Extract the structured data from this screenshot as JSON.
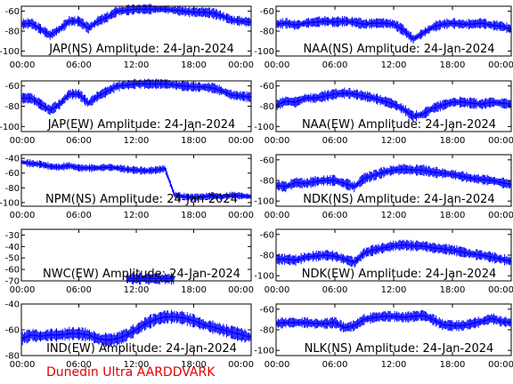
{
  "chart_data": [
    {
      "type": "line",
      "title": "JAP(NS) Amplitude: 24-Jan-2024",
      "ylim": [
        -105,
        -55
      ],
      "yticks": [
        -100,
        -80,
        -60
      ],
      "x_ticks": [
        "00:00",
        "06:00",
        "12:00",
        "18:00",
        "00:00"
      ],
      "series_color": "#0000ff",
      "x": [
        0,
        1,
        2,
        3,
        4,
        5,
        6,
        7,
        8,
        9,
        10,
        11,
        12,
        13,
        14,
        15,
        16,
        17,
        18,
        19,
        20,
        21,
        22,
        23,
        24
      ],
      "values": [
        -73,
        -72,
        -78,
        -84,
        -78,
        -70,
        -70,
        -77,
        -70,
        -66,
        -60,
        -59,
        -58,
        -58,
        -58,
        -58,
        -59,
        -60,
        -61,
        -61,
        -62,
        -65,
        -69,
        -70,
        -71
      ]
    },
    {
      "type": "line",
      "title": "NAA(NS) Amplitude: 24-Jan-2024",
      "ylim": [
        -105,
        -55
      ],
      "yticks": [
        -100,
        -80,
        -60
      ],
      "x_ticks": [
        "00:00",
        "06:00",
        "12:00",
        "18:00",
        "00:00"
      ],
      "series_color": "#0000ff",
      "x": [
        0,
        1,
        2,
        3,
        4,
        5,
        6,
        7,
        8,
        9,
        10,
        11,
        12,
        13,
        14,
        15,
        16,
        17,
        18,
        19,
        20,
        21,
        22,
        23,
        24
      ],
      "values": [
        -73,
        -72,
        -74,
        -72,
        -71,
        -70,
        -71,
        -70,
        -71,
        -73,
        -72,
        -72,
        -73,
        -79,
        -88,
        -82,
        -76,
        -73,
        -72,
        -73,
        -73,
        -72,
        -74,
        -75,
        -78
      ]
    },
    {
      "type": "line",
      "title": "JAP(EW) Amplitude: 24-Jan-2024",
      "ylim": [
        -105,
        -55
      ],
      "yticks": [
        -100,
        -80,
        -60
      ],
      "x_ticks": [
        "00:00",
        "06:00",
        "12:00",
        "18:00",
        "00:00"
      ],
      "series_color": "#0000ff",
      "x": [
        0,
        1,
        2,
        3,
        4,
        5,
        6,
        7,
        8,
        9,
        10,
        11,
        12,
        13,
        14,
        15,
        16,
        17,
        18,
        19,
        20,
        21,
        22,
        23,
        24
      ],
      "values": [
        -72,
        -72,
        -78,
        -84,
        -78,
        -68,
        -68,
        -77,
        -70,
        -65,
        -60,
        -59,
        -58,
        -58,
        -58,
        -58,
        -59,
        -60,
        -61,
        -61,
        -62,
        -65,
        -69,
        -70,
        -71
      ]
    },
    {
      "type": "line",
      "title": "NAA(EW) Amplitude: 24-Jan-2024",
      "ylim": [
        -105,
        -55
      ],
      "yticks": [
        -100,
        -80,
        -60
      ],
      "x_ticks": [
        "00:00",
        "06:00",
        "12:00",
        "18:00",
        "00:00"
      ],
      "series_color": "#0000ff",
      "x": [
        0,
        1,
        2,
        3,
        4,
        5,
        6,
        7,
        8,
        9,
        10,
        11,
        12,
        13,
        14,
        15,
        16,
        17,
        18,
        19,
        20,
        21,
        22,
        23,
        24
      ],
      "values": [
        -79,
        -75,
        -76,
        -72,
        -72,
        -70,
        -68,
        -67,
        -68,
        -70,
        -72,
        -75,
        -78,
        -83,
        -90,
        -88,
        -82,
        -79,
        -76,
        -76,
        -77,
        -78,
        -76,
        -77,
        -78
      ]
    },
    {
      "type": "line",
      "title": "NPM(NS) Amplitude: 24-Jan-2024",
      "ylim": [
        -105,
        -35
      ],
      "yticks": [
        -100,
        -80,
        -60,
        -40
      ],
      "x_ticks": [
        "00:00",
        "06:00",
        "12:00",
        "18:00",
        "00:00"
      ],
      "series_color": "#0000ff",
      "x": [
        0,
        1,
        2,
        3,
        4,
        5,
        6,
        7,
        8,
        9,
        10,
        11,
        12,
        13,
        14,
        15,
        16,
        17,
        18,
        19,
        20,
        21,
        22,
        23,
        24
      ],
      "values": [
        -45,
        -47,
        -48,
        -51,
        -52,
        -50,
        -53,
        -53,
        -53,
        -52,
        -53,
        -55,
        -56,
        -57,
        -56,
        -54,
        -90,
        -92,
        -93,
        -92,
        -91,
        -92,
        -90,
        -91,
        -92
      ]
    },
    {
      "type": "line",
      "title": "NDK(NS) Amplitude: 24-Jan-2024",
      "ylim": [
        -105,
        -55
      ],
      "yticks": [
        -100,
        -80,
        -60
      ],
      "x_ticks": [
        "00:00",
        "06:00",
        "12:00",
        "18:00",
        "00:00"
      ],
      "series_color": "#0000ff",
      "x": [
        0,
        1,
        2,
        3,
        4,
        5,
        6,
        7,
        8,
        9,
        10,
        11,
        12,
        13,
        14,
        15,
        16,
        17,
        18,
        19,
        20,
        21,
        22,
        23,
        24
      ],
      "values": [
        -85,
        -86,
        -82,
        -83,
        -81,
        -80,
        -80,
        -83,
        -86,
        -78,
        -75,
        -72,
        -70,
        -69,
        -70,
        -70,
        -72,
        -73,
        -74,
        -76,
        -78,
        -79,
        -80,
        -82,
        -84
      ]
    },
    {
      "type": "line",
      "title": "NWC(EW) Amplitude: 24-Jan-2024",
      "ylim": [
        -70,
        -25
      ],
      "yticks": [
        -70,
        -60,
        -50,
        -40,
        -30
      ],
      "x_ticks": [
        "00:00",
        "06:00",
        "12:00",
        "18:00",
        "00:00"
      ],
      "series_color": "#0000ff",
      "x": [
        11,
        12,
        13,
        14,
        15,
        16
      ],
      "values": [
        -68,
        -68,
        -68,
        -68,
        -68,
        -68
      ]
    },
    {
      "type": "line",
      "title": "NDK(EW) Amplitude: 24-Jan-2024",
      "ylim": [
        -105,
        -55
      ],
      "yticks": [
        -100,
        -80,
        -60
      ],
      "x_ticks": [
        "00:00",
        "06:00",
        "12:00",
        "18:00",
        "00:00"
      ],
      "series_color": "#0000ff",
      "x": [
        0,
        1,
        2,
        3,
        4,
        5,
        6,
        7,
        8,
        9,
        10,
        11,
        12,
        13,
        14,
        15,
        16,
        17,
        18,
        19,
        20,
        21,
        22,
        23,
        24
      ],
      "values": [
        -84,
        -84,
        -85,
        -82,
        -81,
        -80,
        -81,
        -84,
        -87,
        -78,
        -75,
        -73,
        -71,
        -70,
        -71,
        -71,
        -73,
        -74,
        -75,
        -77,
        -79,
        -80,
        -82,
        -84,
        -86
      ]
    },
    {
      "type": "line",
      "title": "IND(EW) Amplitude: 24-Jan-2024",
      "ylim": [
        -80,
        -40
      ],
      "yticks": [
        -80,
        -60,
        -40
      ],
      "x_ticks": [
        "00:00",
        "06:00",
        "12:00",
        "18:00",
        "00:00"
      ],
      "series_color": "#0000ff",
      "x": [
        0,
        1,
        2,
        3,
        4,
        5,
        6,
        7,
        8,
        9,
        10,
        11,
        12,
        13,
        14,
        15,
        16,
        17,
        18,
        19,
        20,
        21,
        22,
        23,
        24
      ],
      "values": [
        -67,
        -64,
        -65,
        -64,
        -64,
        -63,
        -63,
        -64,
        -67,
        -68,
        -67,
        -64,
        -60,
        -55,
        -52,
        -50,
        -50,
        -51,
        -53,
        -56,
        -58,
        -60,
        -62,
        -64,
        -66
      ]
    },
    {
      "type": "line",
      "title": "NLK(NS) Amplitude: 24-Jan-2024",
      "ylim": [
        -105,
        -55
      ],
      "yticks": [
        -100,
        -80,
        -60
      ],
      "x_ticks": [
        "00:00",
        "06:00",
        "12:00",
        "18:00",
        "00:00"
      ],
      "series_color": "#0000ff",
      "x": [
        0,
        1,
        2,
        3,
        4,
        5,
        6,
        7,
        8,
        9,
        10,
        11,
        12,
        13,
        14,
        15,
        16,
        17,
        18,
        19,
        20,
        21,
        22,
        23,
        24
      ],
      "values": [
        -74,
        -73,
        -73,
        -73,
        -74,
        -74,
        -73,
        -78,
        -76,
        -70,
        -68,
        -67,
        -67,
        -68,
        -67,
        -66,
        -70,
        -75,
        -76,
        -76,
        -74,
        -72,
        -69,
        -72,
        -73
      ]
    }
  ],
  "footer": {
    "credit": "Dunedin Ultra AARDDVARK"
  }
}
